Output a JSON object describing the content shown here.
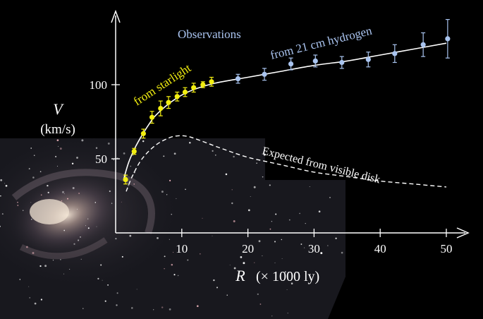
{
  "chart_data": {
    "type": "scatter",
    "xlabel_var": "R",
    "xlabel_unit": "(× 1000 ly)",
    "ylabel_var": "V",
    "ylabel_unit": "(km/s)",
    "x_ticks": [
      10,
      20,
      30,
      40,
      50
    ],
    "y_ticks": [
      50,
      100
    ],
    "xlim": [
      0,
      50
    ],
    "ylim": [
      0,
      135
    ],
    "grid": false,
    "annotations": {
      "observations": "Observations",
      "starlight": "from  starlight",
      "hydrogen": "from 21 cm hydrogen",
      "expected": "Expected from visible disk"
    },
    "series": [
      {
        "name": "from starlight",
        "color": "#f2ee10",
        "points": [
          {
            "x": 1.5,
            "y": 36,
            "err": 3
          },
          {
            "x": 2.8,
            "y": 55,
            "err": 2
          },
          {
            "x": 4.2,
            "y": 67,
            "err": 3
          },
          {
            "x": 5.5,
            "y": 78,
            "err": 4
          },
          {
            "x": 6.8,
            "y": 84,
            "err": 5
          },
          {
            "x": 8.0,
            "y": 88,
            "err": 4
          },
          {
            "x": 9.3,
            "y": 92,
            "err": 3
          },
          {
            "x": 10.5,
            "y": 95,
            "err": 3
          },
          {
            "x": 11.8,
            "y": 98,
            "err": 3
          },
          {
            "x": 13.2,
            "y": 100,
            "err": 2
          },
          {
            "x": 14.5,
            "y": 102,
            "err": 3
          }
        ]
      },
      {
        "name": "from 21 cm hydrogen",
        "color": "#a9c4ef",
        "points": [
          {
            "x": 18.5,
            "y": 104,
            "err": 3
          },
          {
            "x": 22.5,
            "y": 107,
            "err": 4
          },
          {
            "x": 26.5,
            "y": 114,
            "err": 4
          },
          {
            "x": 30.2,
            "y": 116,
            "err": 4
          },
          {
            "x": 34.2,
            "y": 115,
            "err": 4
          },
          {
            "x": 38.2,
            "y": 117,
            "err": 5
          },
          {
            "x": 42.2,
            "y": 121,
            "err": 6
          },
          {
            "x": 46.5,
            "y": 127,
            "err": 8
          },
          {
            "x": 50.2,
            "y": 131,
            "err": 13
          }
        ]
      }
    ],
    "fit_curve": {
      "color": "#ffffff",
      "points": [
        [
          1.2,
          36
        ],
        [
          2,
          48
        ],
        [
          3,
          58
        ],
        [
          4,
          66
        ],
        [
          5,
          73
        ],
        [
          6,
          79
        ],
        [
          8,
          87
        ],
        [
          10,
          93
        ],
        [
          12,
          97
        ],
        [
          15,
          101
        ],
        [
          20,
          105
        ],
        [
          25,
          109
        ],
        [
          30,
          113
        ],
        [
          35,
          116
        ],
        [
          40,
          120
        ],
        [
          45,
          124
        ],
        [
          50,
          128
        ]
      ]
    },
    "expected_curve": {
      "color": "#ffffff",
      "points": [
        [
          1.6,
          28
        ],
        [
          2.5,
          38
        ],
        [
          4,
          50
        ],
        [
          6,
          59
        ],
        [
          8,
          64
        ],
        [
          9.5,
          65.5
        ],
        [
          11,
          65
        ],
        [
          13,
          62
        ],
        [
          16,
          57
        ],
        [
          20,
          51
        ],
        [
          25,
          46
        ],
        [
          30,
          41
        ],
        [
          35,
          38
        ],
        [
          40,
          35
        ],
        [
          45,
          33
        ],
        [
          50,
          31
        ]
      ]
    }
  }
}
